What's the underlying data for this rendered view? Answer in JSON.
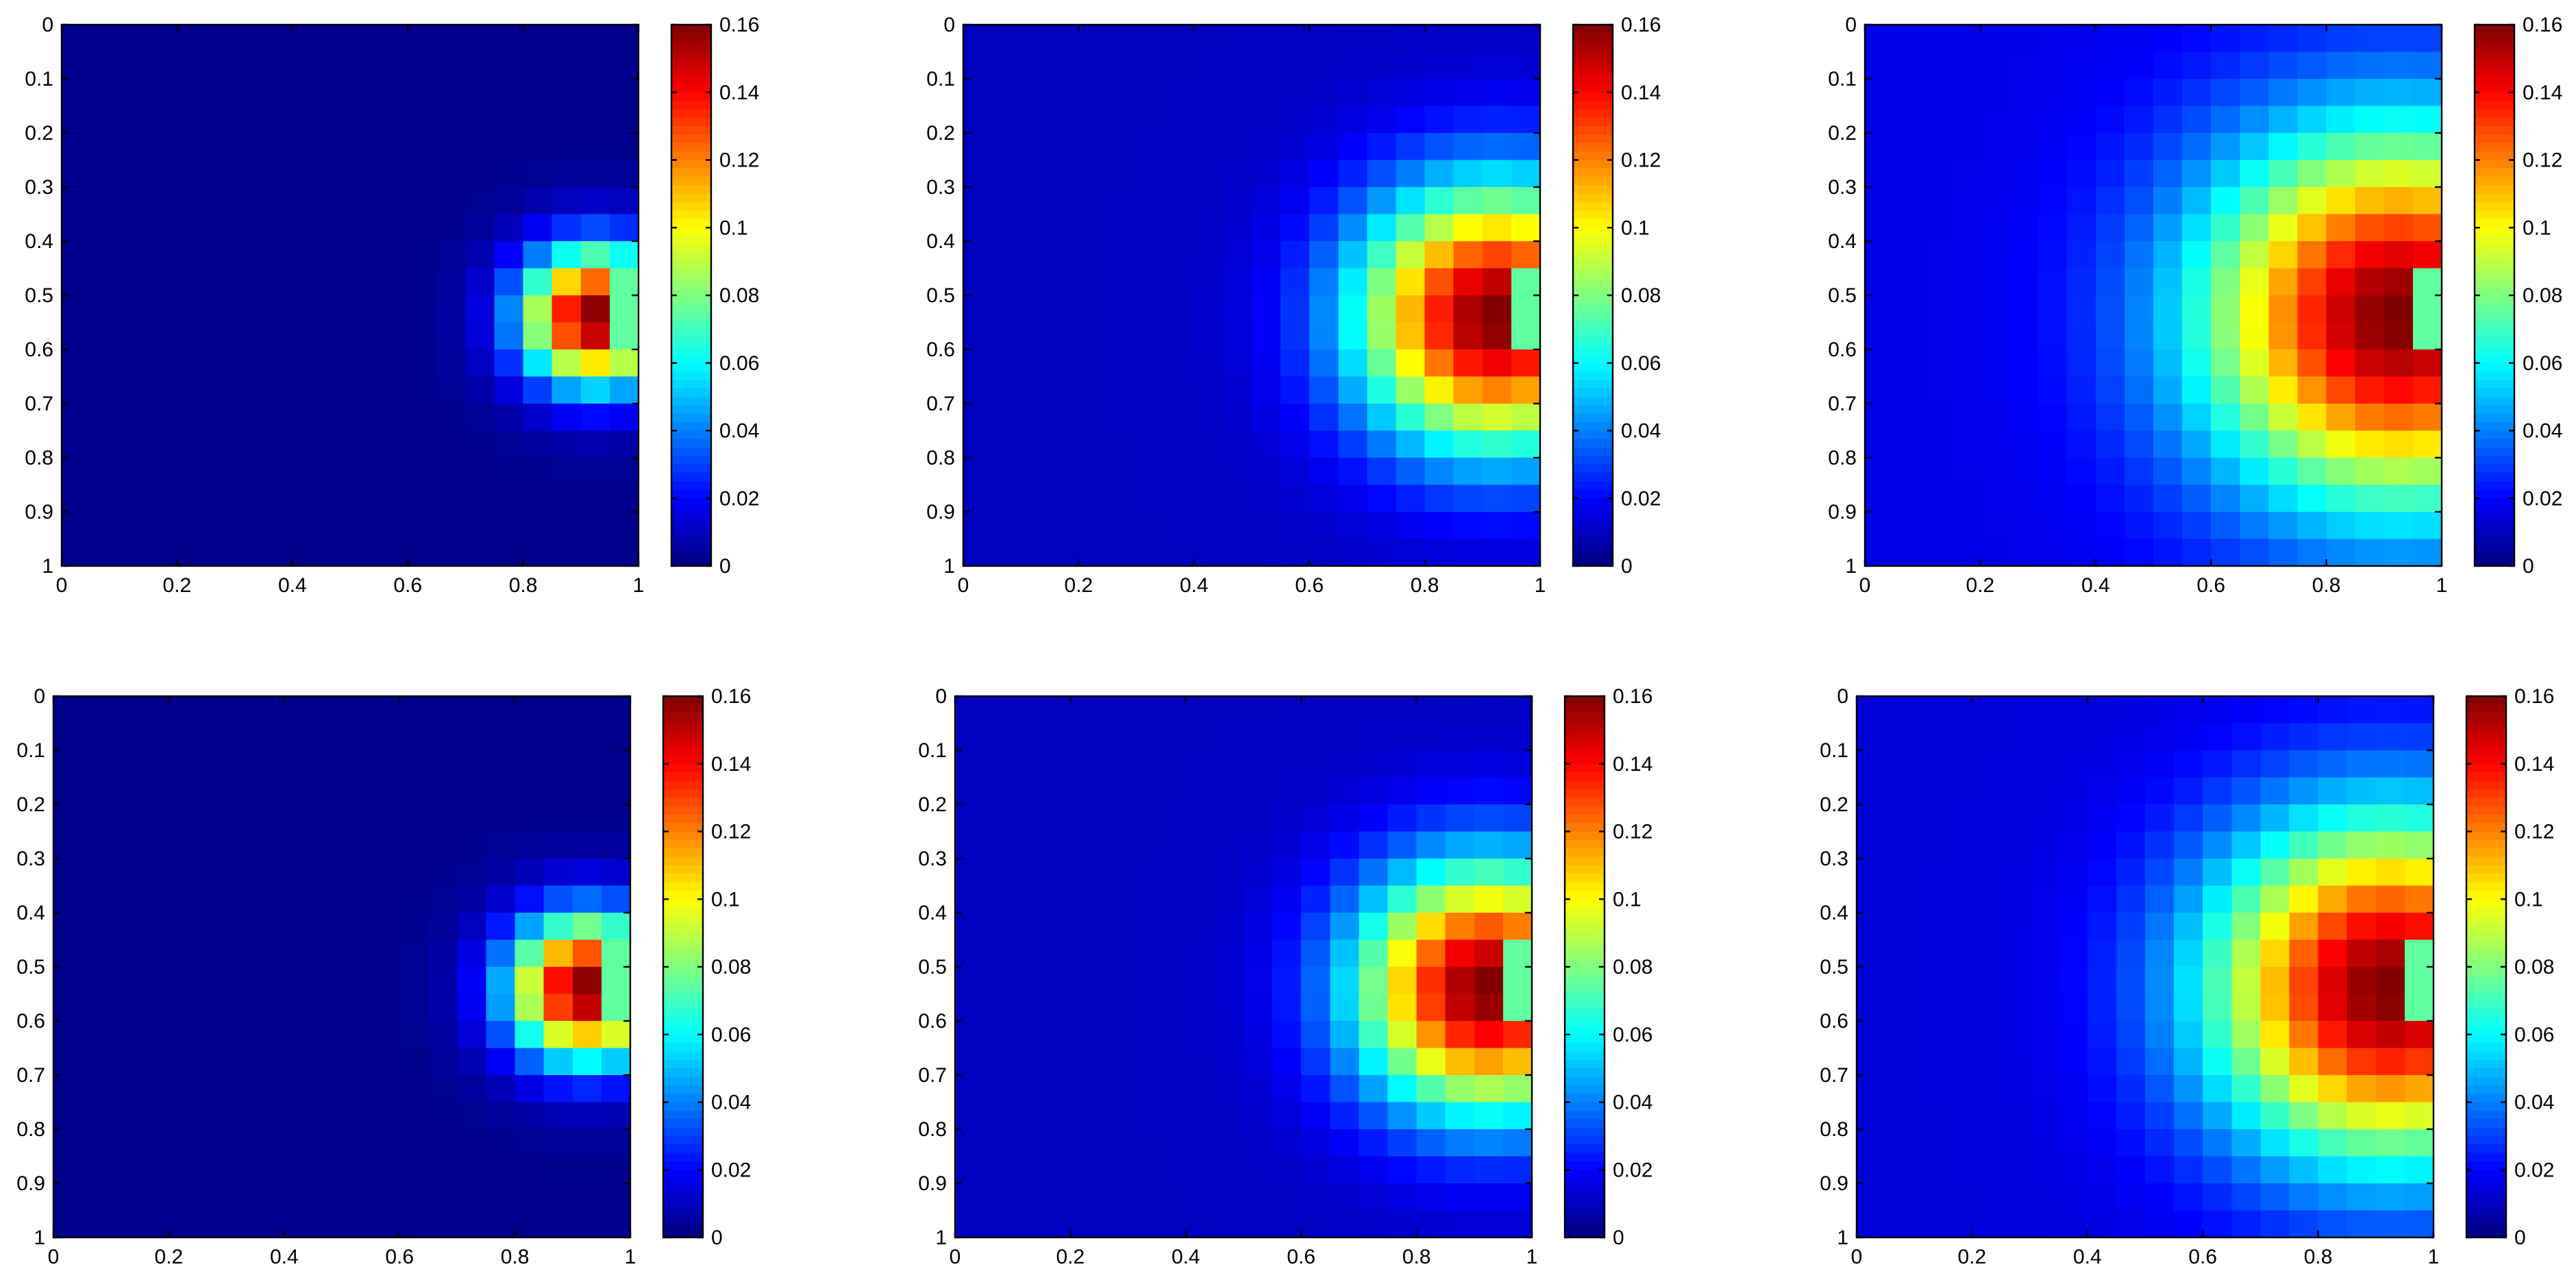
{
  "chart_data": [
    {
      "type": "heatmap",
      "panel": "top-left",
      "x_ticks": [
        "0",
        "0.2",
        "0.4",
        "0.6",
        "0.8",
        "1"
      ],
      "y_ticks": [
        "0",
        "0.1",
        "0.2",
        "0.3",
        "0.4",
        "0.5",
        "0.6",
        "0.7",
        "0.8",
        "0.9",
        "1"
      ],
      "colorbar_ticks": [
        "0",
        "0.02",
        "0.04",
        "0.06",
        "0.08",
        "0.1",
        "0.12",
        "0.14",
        "0.16"
      ],
      "xlim": [
        0,
        1
      ],
      "ylim": [
        0,
        1
      ],
      "y_reversed": true,
      "clim": [
        0,
        0.16
      ],
      "colormap": "jet",
      "grid": [
        20,
        20
      ],
      "field": {
        "center": [
          0.925,
          0.54
        ],
        "peak": 0.16,
        "sigma": 0.09,
        "base": 0.002,
        "boundary_value": 0.075
      }
    },
    {
      "type": "heatmap",
      "panel": "top-middle",
      "x_ticks": [
        "0",
        "0.2",
        "0.4",
        "0.6",
        "0.8",
        "1"
      ],
      "y_ticks": [
        "0",
        "0.1",
        "0.2",
        "0.3",
        "0.4",
        "0.5",
        "0.6",
        "0.7",
        "0.8",
        "0.9",
        "1"
      ],
      "colorbar_ticks": [
        "0",
        "0.02",
        "0.04",
        "0.06",
        "0.08",
        "0.1",
        "0.12",
        "0.14",
        "0.16"
      ],
      "xlim": [
        0,
        1
      ],
      "ylim": [
        0,
        1
      ],
      "y_reversed": true,
      "clim": [
        0,
        0.16
      ],
      "colormap": "jet",
      "grid": [
        20,
        20
      ],
      "field": {
        "center": [
          0.925,
          0.54
        ],
        "peak": 0.16,
        "sigma": 0.17,
        "base": 0.01,
        "boundary_value": 0.075
      }
    },
    {
      "type": "heatmap",
      "panel": "top-right",
      "x_ticks": [
        "0",
        "0.2",
        "0.4",
        "0.6",
        "0.8",
        "1"
      ],
      "y_ticks": [
        "0",
        "0.1",
        "0.2",
        "0.3",
        "0.4",
        "0.5",
        "0.6",
        "0.7",
        "0.8",
        "0.9",
        "1"
      ],
      "colorbar_ticks": [
        "0",
        "0.02",
        "0.04",
        "0.06",
        "0.08",
        "0.1",
        "0.12",
        "0.14",
        "0.16"
      ],
      "xlim": [
        0,
        1
      ],
      "ylim": [
        0,
        1
      ],
      "y_reversed": true,
      "clim": [
        0,
        0.16
      ],
      "colormap": "jet",
      "grid": [
        20,
        20
      ],
      "field": {
        "center": [
          0.925,
          0.54
        ],
        "peak": 0.16,
        "sigma": 0.24,
        "base": 0.016,
        "boundary_value": 0.075
      }
    },
    {
      "type": "heatmap",
      "panel": "bottom-left",
      "x_ticks": [
        "0",
        "0.2",
        "0.4",
        "0.6",
        "0.8",
        "1"
      ],
      "y_ticks": [
        "0",
        "0.1",
        "0.2",
        "0.3",
        "0.4",
        "0.5",
        "0.6",
        "0.7",
        "0.8",
        "0.9",
        "1"
      ],
      "colorbar_ticks": [
        "0",
        "0.02",
        "0.04",
        "0.06",
        "0.08",
        "0.1",
        "0.12",
        "0.14",
        "0.16"
      ],
      "xlim": [
        0,
        1
      ],
      "ylim": [
        0,
        1
      ],
      "y_reversed": true,
      "clim": [
        0,
        0.16
      ],
      "colormap": "jet",
      "grid": [
        20,
        20
      ],
      "field": {
        "center": [
          0.925,
          0.54
        ],
        "peak": 0.16,
        "sigma": 0.095,
        "base": 0.002,
        "boundary_value": 0.075
      }
    },
    {
      "type": "heatmap",
      "panel": "bottom-middle",
      "x_ticks": [
        "0",
        "0.2",
        "0.4",
        "0.6",
        "0.8",
        "1"
      ],
      "y_ticks": [
        "0",
        "0.1",
        "0.2",
        "0.3",
        "0.4",
        "0.5",
        "0.6",
        "0.7",
        "0.8",
        "0.9",
        "1"
      ],
      "colorbar_ticks": [
        "0",
        "0.02",
        "0.04",
        "0.06",
        "0.08",
        "0.1",
        "0.12",
        "0.14",
        "0.16"
      ],
      "xlim": [
        0,
        1
      ],
      "ylim": [
        0,
        1
      ],
      "y_reversed": true,
      "clim": [
        0,
        0.16
      ],
      "colormap": "jet",
      "grid": [
        20,
        20
      ],
      "field": {
        "center": [
          0.925,
          0.54
        ],
        "peak": 0.16,
        "sigma": 0.16,
        "base": 0.01,
        "boundary_value": 0.075
      }
    },
    {
      "type": "heatmap",
      "panel": "bottom-right",
      "x_ticks": [
        "0",
        "0.2",
        "0.4",
        "0.6",
        "0.8",
        "1"
      ],
      "y_ticks": [
        "0",
        "0.1",
        "0.2",
        "0.3",
        "0.4",
        "0.5",
        "0.6",
        "0.7",
        "0.8",
        "0.9",
        "1"
      ],
      "colorbar_ticks": [
        "0",
        "0.02",
        "0.04",
        "0.06",
        "0.08",
        "0.1",
        "0.12",
        "0.14",
        "0.16"
      ],
      "xlim": [
        0,
        1
      ],
      "ylim": [
        0,
        1
      ],
      "y_reversed": true,
      "clim": [
        0,
        0.16
      ],
      "colormap": "jet",
      "grid": [
        20,
        20
      ],
      "field": {
        "center": [
          0.925,
          0.54
        ],
        "peak": 0.16,
        "sigma": 0.22,
        "base": 0.014,
        "boundary_value": 0.075
      }
    }
  ]
}
